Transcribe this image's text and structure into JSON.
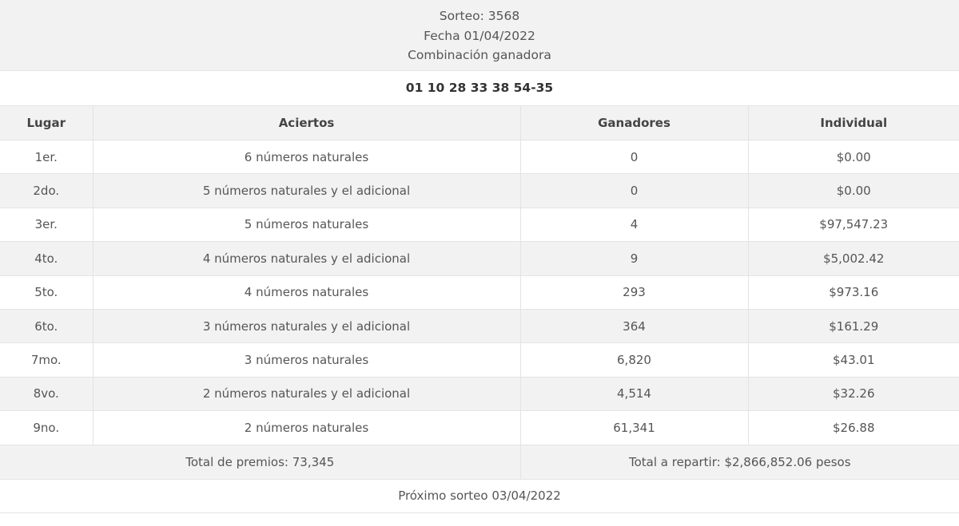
{
  "header": {
    "sorteo": "Sorteo: 3568",
    "fecha": "Fecha 01/04/2022",
    "label": "Combinación ganadora"
  },
  "combination": "01 10 28 33 38 54-35",
  "columns": [
    "Lugar",
    "Aciertos",
    "Ganadores",
    "Individual"
  ],
  "rows": [
    [
      "1er.",
      "6 números naturales",
      "0",
      "$0.00"
    ],
    [
      "2do.",
      "5 números naturales y el adicional",
      "0",
      "$0.00"
    ],
    [
      "3er.",
      "5 números naturales",
      "4",
      "$97,547.23"
    ],
    [
      "4to.",
      "4 números naturales y el adicional",
      "9",
      "$5,002.42"
    ],
    [
      "5to.",
      "4 números naturales",
      "293",
      "$973.16"
    ],
    [
      "6to.",
      "3 números naturales y el adicional",
      "364",
      "$161.29"
    ],
    [
      "7mo.",
      "3 números naturales",
      "6,820",
      "$43.01"
    ],
    [
      "8vo.",
      "2 números naturales y el adicional",
      "4,514",
      "$32.26"
    ],
    [
      "9no.",
      "2 números naturales",
      "61,341",
      "$26.88"
    ]
  ],
  "totals": {
    "premios": "Total de premios: 73,345",
    "repartir": "Total a repartir: $2,866,852.06 pesos"
  },
  "next": "Próximo sorteo 03/04/2022"
}
